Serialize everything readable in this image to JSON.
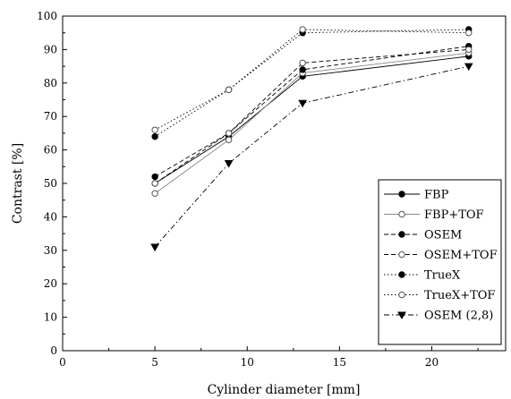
{
  "chart_data": {
    "type": "line",
    "title": "",
    "xlabel": "Cylinder diameter [mm]",
    "ylabel": "Contrast [%]",
    "xlim": [
      0,
      24
    ],
    "ylim": [
      0,
      100
    ],
    "xticks": [
      "0",
      "5",
      "10",
      "15",
      "20"
    ],
    "yticks": [
      "0",
      "10",
      "20",
      "30",
      "40",
      "50",
      "60",
      "70",
      "80",
      "90",
      "100"
    ],
    "grid": false,
    "legend_position": "bottom-right",
    "x": [
      5,
      9,
      13,
      22
    ],
    "series": [
      {
        "name": "FBP",
        "values": [
          50,
          64,
          82,
          88
        ],
        "dash": "solid",
        "marker": "filled-circle",
        "color": "#000000"
      },
      {
        "name": "FBP+TOF",
        "values": [
          47,
          63,
          83,
          89
        ],
        "dash": "solid",
        "marker": "open-circle",
        "color": "#888888"
      },
      {
        "name": "OSEM",
        "values": [
          52,
          65,
          84,
          91
        ],
        "dash": "dashed",
        "marker": "filled-circle",
        "color": "#000000"
      },
      {
        "name": "OSEM+TOF",
        "values": [
          50,
          65,
          86,
          90
        ],
        "dash": "dashed",
        "marker": "open-circle",
        "color": "#000000"
      },
      {
        "name": "TrueX",
        "values": [
          64,
          78,
          95,
          96
        ],
        "dash": "dotted",
        "marker": "filled-circle",
        "color": "#000000"
      },
      {
        "name": "TrueX+TOF",
        "values": [
          66,
          78,
          96,
          95
        ],
        "dash": "dotted",
        "marker": "open-circle",
        "color": "#000000"
      },
      {
        "name": "OSEM (2,8)",
        "values": [
          31,
          56,
          74,
          85
        ],
        "dash": "dash-dot",
        "marker": "filled-triangle-down",
        "color": "#000000"
      }
    ]
  }
}
